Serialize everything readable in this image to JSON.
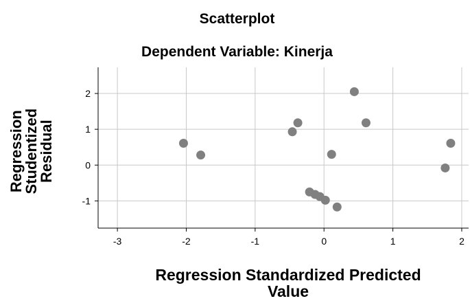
{
  "title": "Scatterplot",
  "subtitle": "Dependent Variable: Kinerja",
  "xlabel_line1": "Regression Standardized Predicted",
  "xlabel_line2": "Value",
  "ylabel_line1": "Regression",
  "ylabel_line2": "Studentized",
  "ylabel_line3": "Residual",
  "colors": {
    "point": "#808080",
    "grid": "#c8c8c8",
    "axis": "#000000",
    "frame": "#aaaaaa"
  },
  "chart_data": {
    "type": "scatter",
    "title": "Scatterplot",
    "subtitle": "Dependent Variable: Kinerja",
    "xlabel": "Regression Standardized Predicted Value",
    "ylabel": "Regression Studentized Residual",
    "xlim": [
      -3.28,
      2.1
    ],
    "ylim": [
      -1.76,
      2.73
    ],
    "xticks": [
      -3,
      -2,
      -1,
      0,
      1,
      2
    ],
    "yticks": [
      -1,
      0,
      1,
      2
    ],
    "grid": true,
    "points": [
      {
        "x": -2.04,
        "y": 0.61
      },
      {
        "x": -1.79,
        "y": 0.28
      },
      {
        "x": -0.46,
        "y": 0.93
      },
      {
        "x": -0.38,
        "y": 1.18
      },
      {
        "x": -0.21,
        "y": -0.75
      },
      {
        "x": -0.13,
        "y": -0.82
      },
      {
        "x": -0.06,
        "y": -0.88
      },
      {
        "x": 0.02,
        "y": -0.98
      },
      {
        "x": 0.11,
        "y": 0.3
      },
      {
        "x": 0.19,
        "y": -1.17
      },
      {
        "x": 0.44,
        "y": 2.05
      },
      {
        "x": 0.61,
        "y": 1.18
      },
      {
        "x": 1.76,
        "y": -0.08
      },
      {
        "x": 1.84,
        "y": 0.61
      }
    ]
  }
}
